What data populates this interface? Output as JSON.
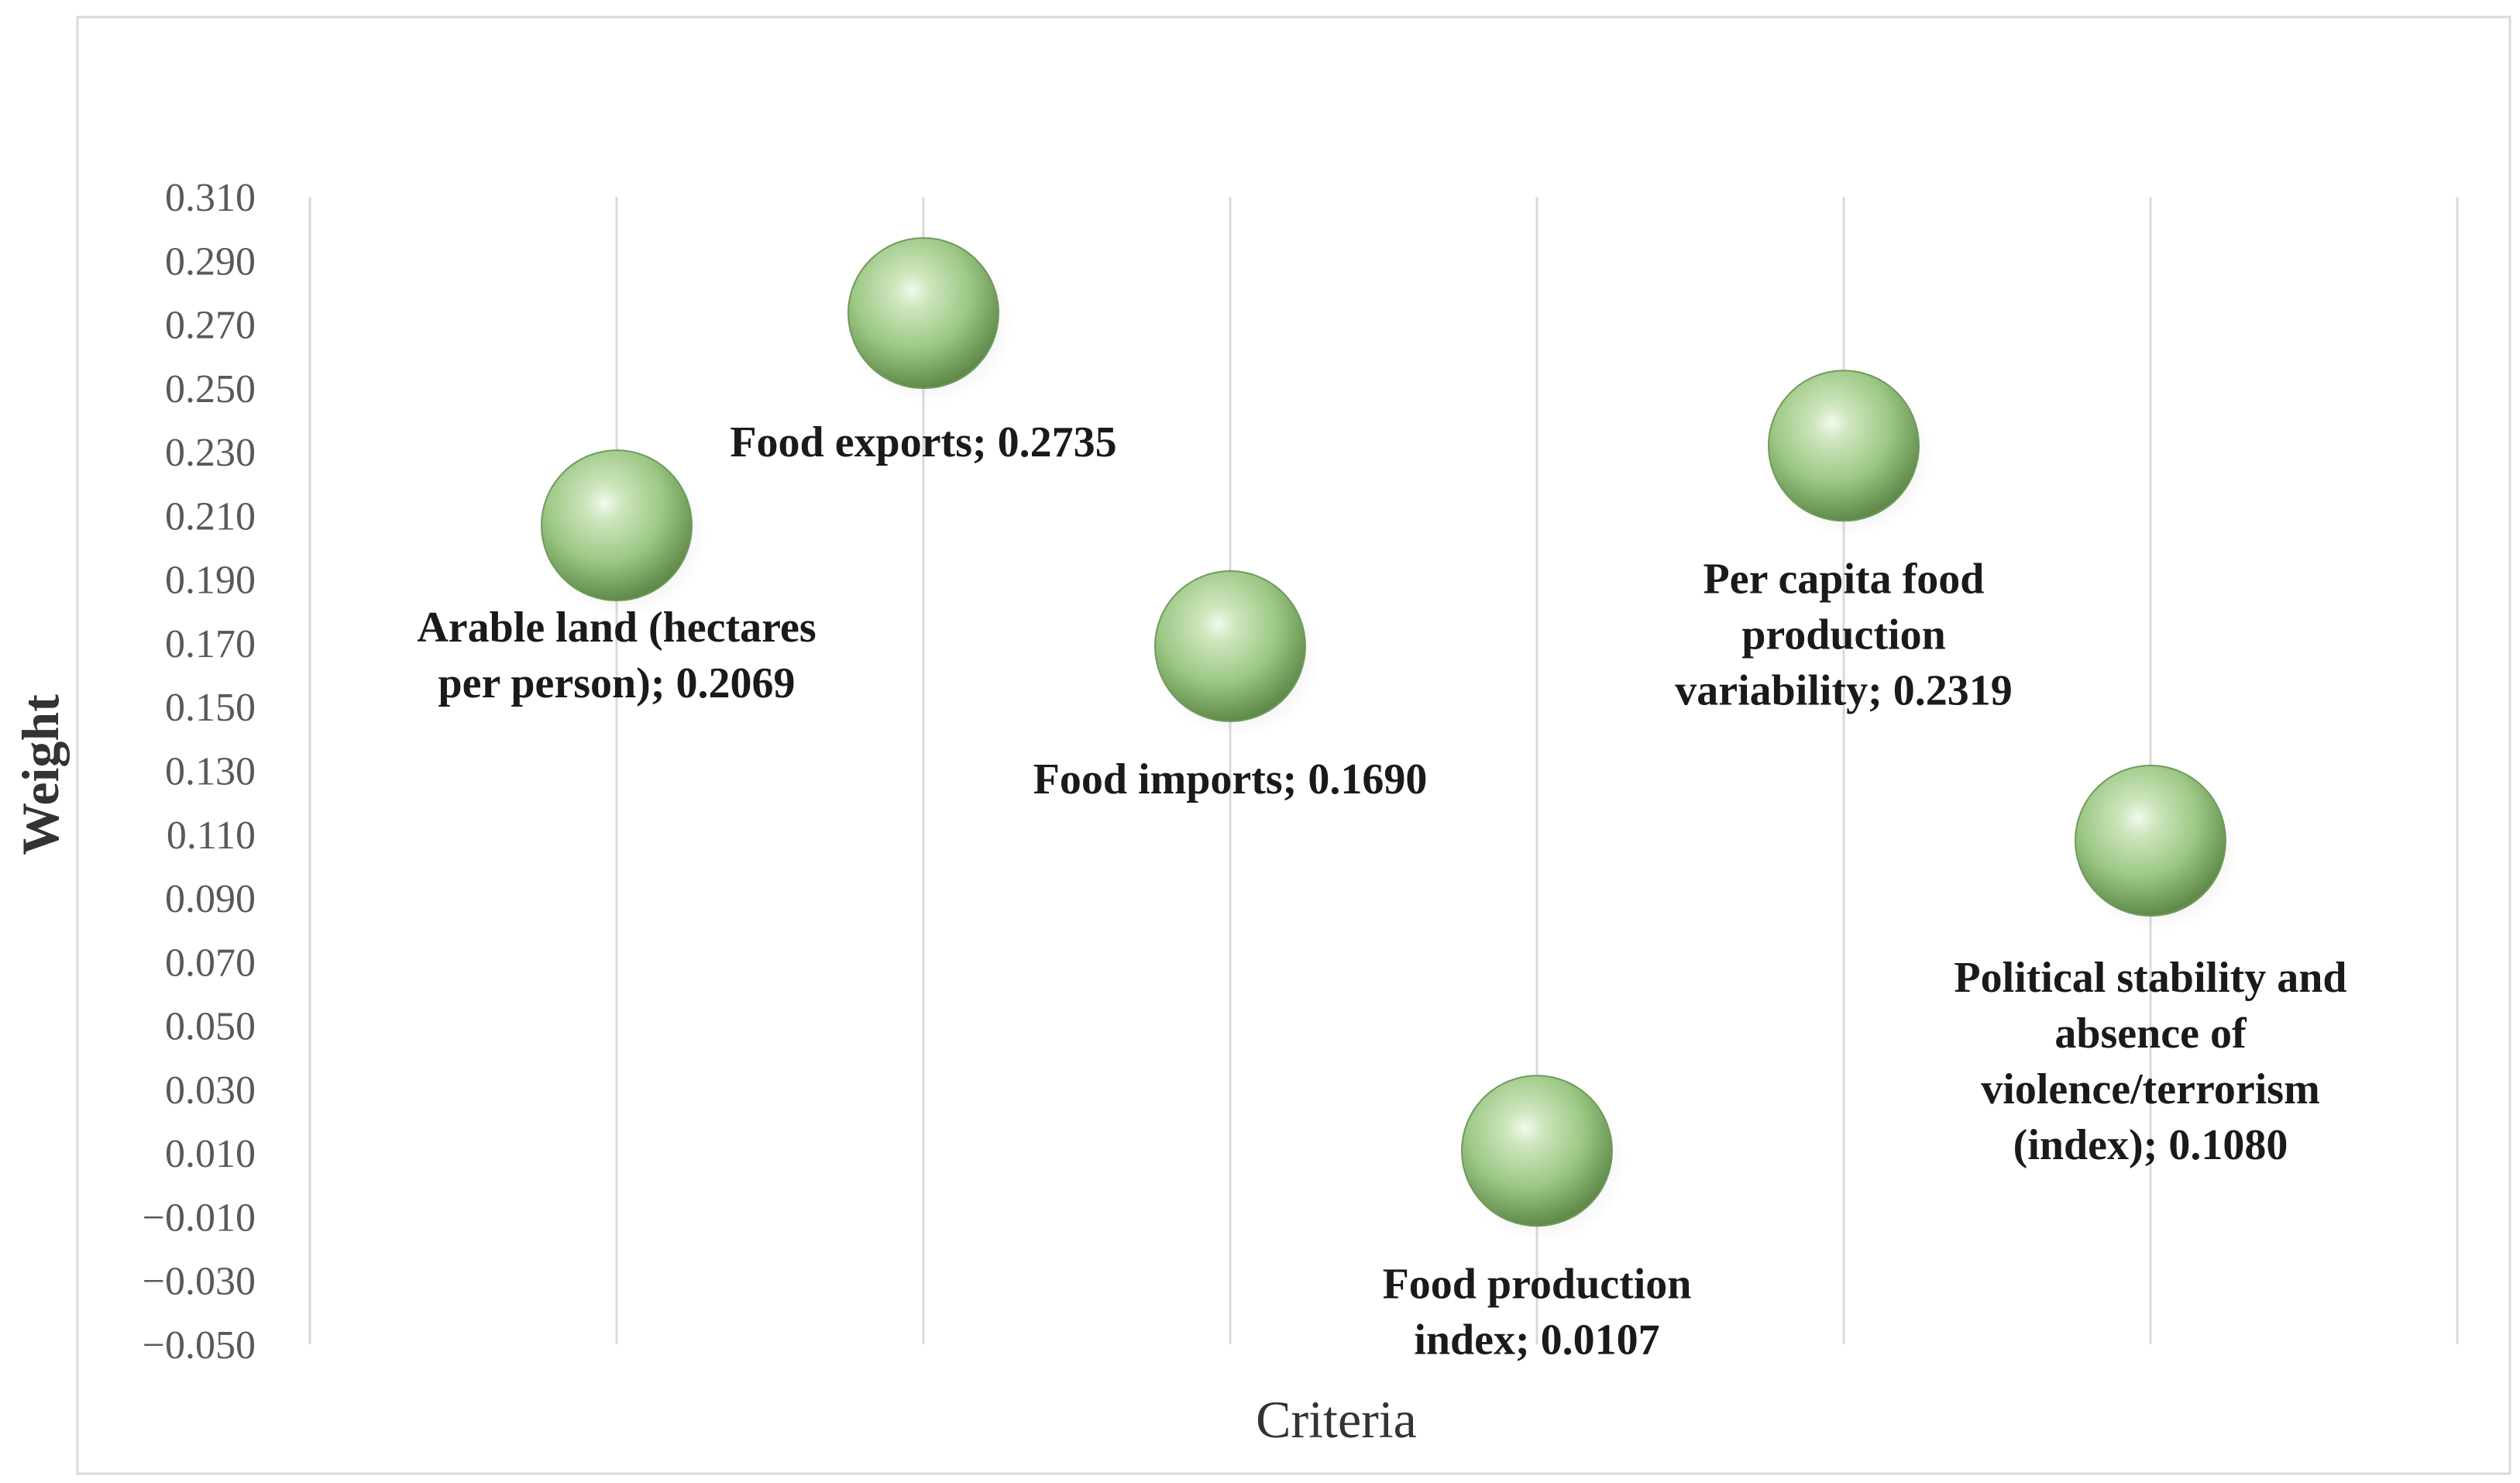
{
  "chart_data": {
    "type": "scatter",
    "title": "",
    "xlabel": "Criteria",
    "ylabel": "Weight",
    "ylim": [
      -0.05,
      0.31
    ],
    "ytick_step": 0.02,
    "grid": {
      "vertical": true,
      "horizontal": false
    },
    "legend": "none",
    "marker_color": "#8fbf73",
    "points": [
      {
        "x": 1,
        "y": 0.2069,
        "label": "Arable land (hectares per person); 0.2069",
        "label_lines": [
          "Arable land (hectares",
          "per person); 0.2069"
        ]
      },
      {
        "x": 2,
        "y": 0.2735,
        "label": "Food exports; 0.2735",
        "label_lines": [
          "Food exports; 0.2735"
        ]
      },
      {
        "x": 3,
        "y": 0.169,
        "label": "Food imports; 0.1690",
        "label_lines": [
          "Food imports; 0.1690"
        ]
      },
      {
        "x": 4,
        "y": 0.0107,
        "label": "Food production index; 0.0107",
        "label_lines": [
          "Food production",
          "index; 0.0107"
        ]
      },
      {
        "x": 5,
        "y": 0.2319,
        "label": "Per capita food production variability; 0.2319",
        "label_lines": [
          "Per capita food",
          "production",
          "variability; 0.2319"
        ]
      },
      {
        "x": 6,
        "y": 0.108,
        "label": "Political stability and absence of violence/terrorism (index); 0.1080",
        "label_lines": [
          "Political stability and",
          "absence of",
          "violence/terrorism",
          "(index); 0.1080"
        ]
      }
    ]
  }
}
